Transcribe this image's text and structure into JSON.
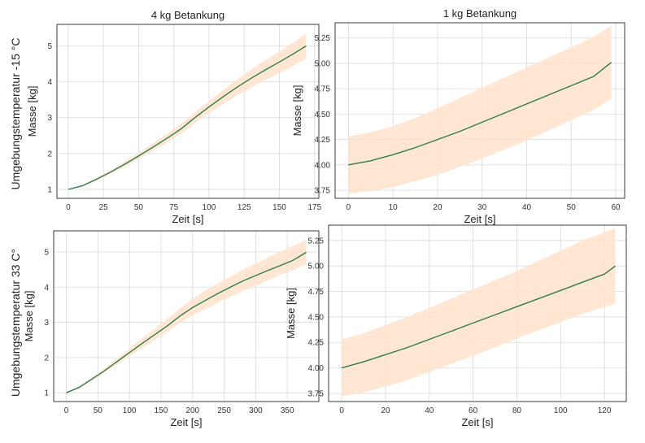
{
  "row_labels": [
    "Umgebungstemperatur -15 °C",
    "Umgebungstemperatur 33 C°"
  ],
  "colors": {
    "line": "#2e7d4a",
    "band": "#ffe3cc",
    "grid": "#d9d9d9",
    "frame": "#3a3a3a"
  },
  "chart_data": [
    {
      "type": "line",
      "title": "4 kg Betankung",
      "xlabel": "Zeit [s]",
      "ylabel": "Masse [kg]",
      "xlim": [
        -8,
        178
      ],
      "ylim": [
        0.75,
        5.6
      ],
      "xticks": [
        0,
        25,
        50,
        75,
        100,
        125,
        150,
        175
      ],
      "yticks": [
        1,
        2,
        3,
        4,
        5
      ],
      "grid": true,
      "series": [
        {
          "x": [
            0,
            10,
            20,
            30,
            40,
            50,
            60,
            70,
            80,
            90,
            100,
            110,
            120,
            130,
            140,
            150,
            160,
            169
          ],
          "y": [
            1.0,
            1.1,
            1.28,
            1.48,
            1.7,
            1.93,
            2.17,
            2.42,
            2.68,
            3.0,
            3.3,
            3.58,
            3.85,
            4.1,
            4.33,
            4.55,
            4.78,
            5.0
          ],
          "lower": [
            1.0,
            1.08,
            1.24,
            1.43,
            1.63,
            1.85,
            2.07,
            2.3,
            2.55,
            2.85,
            3.13,
            3.38,
            3.62,
            3.84,
            4.05,
            4.25,
            4.45,
            4.65
          ],
          "upper": [
            1.0,
            1.12,
            1.32,
            1.53,
            1.77,
            2.02,
            2.28,
            2.55,
            2.83,
            3.15,
            3.47,
            3.77,
            4.07,
            4.35,
            4.6,
            4.85,
            5.1,
            5.35
          ]
        }
      ]
    },
    {
      "type": "line",
      "title": "1 kg Betankung",
      "xlabel": "Zeit [s]",
      "ylabel": "Masse [kg]",
      "xlim": [
        -3,
        62
      ],
      "ylim": [
        3.67,
        5.4
      ],
      "xticks": [
        0,
        10,
        20,
        30,
        40,
        50,
        60
      ],
      "yticks": [
        3.75,
        4.0,
        4.25,
        4.5,
        4.75,
        5.0,
        5.25
      ],
      "grid": true,
      "series": [
        {
          "x": [
            0,
            5,
            10,
            15,
            20,
            25,
            30,
            35,
            40,
            45,
            50,
            55,
            59
          ],
          "y": [
            4.0,
            4.04,
            4.1,
            4.17,
            4.25,
            4.33,
            4.42,
            4.51,
            4.6,
            4.69,
            4.78,
            4.87,
            5.01
          ],
          "lower": [
            3.72,
            3.74,
            3.78,
            3.84,
            3.9,
            3.98,
            4.06,
            4.15,
            4.24,
            4.34,
            4.44,
            4.54,
            4.65
          ],
          "upper": [
            4.28,
            4.32,
            4.38,
            4.46,
            4.56,
            4.66,
            4.76,
            4.86,
            4.96,
            5.06,
            5.16,
            5.26,
            5.37
          ]
        }
      ]
    },
    {
      "type": "line",
      "title": "",
      "xlabel": "Zeit [s]",
      "ylabel": "Masse [kg]",
      "xlim": [
        -20,
        400
      ],
      "ylim": [
        0.75,
        5.6
      ],
      "xticks": [
        0,
        50,
        100,
        150,
        200,
        250,
        300,
        350
      ],
      "yticks": [
        1,
        2,
        3,
        4,
        5
      ],
      "grid": true,
      "series": [
        {
          "x": [
            0,
            20,
            40,
            60,
            80,
            100,
            120,
            140,
            160,
            180,
            200,
            220,
            240,
            260,
            280,
            300,
            320,
            340,
            360,
            380
          ],
          "y": [
            1.0,
            1.15,
            1.38,
            1.62,
            1.88,
            2.14,
            2.4,
            2.65,
            2.9,
            3.18,
            3.42,
            3.62,
            3.82,
            4.0,
            4.18,
            4.33,
            4.48,
            4.62,
            4.77,
            4.99
          ],
          "lower": [
            1.0,
            1.13,
            1.34,
            1.56,
            1.8,
            2.03,
            2.27,
            2.5,
            2.73,
            2.98,
            3.2,
            3.38,
            3.56,
            3.73,
            3.89,
            4.04,
            4.2,
            4.35,
            4.5,
            4.65
          ],
          "upper": [
            1.0,
            1.17,
            1.42,
            1.68,
            1.97,
            2.26,
            2.55,
            2.82,
            3.1,
            3.4,
            3.67,
            3.9,
            4.11,
            4.3,
            4.5,
            4.67,
            4.85,
            5.02,
            5.18,
            5.35
          ]
        }
      ]
    },
    {
      "type": "line",
      "title": "",
      "xlabel": "Zeit [s]",
      "ylabel": "Masse [kg]",
      "xlim": [
        -6,
        130
      ],
      "ylim": [
        3.67,
        5.4
      ],
      "xticks": [
        0,
        20,
        40,
        60,
        80,
        100,
        120
      ],
      "yticks": [
        3.75,
        4.0,
        4.25,
        4.5,
        4.75,
        5.0,
        5.25
      ],
      "grid": true,
      "series": [
        {
          "x": [
            0,
            10,
            20,
            30,
            40,
            50,
            60,
            70,
            80,
            90,
            100,
            110,
            120,
            125
          ],
          "y": [
            4.0,
            4.06,
            4.13,
            4.2,
            4.28,
            4.36,
            4.44,
            4.52,
            4.6,
            4.68,
            4.76,
            4.84,
            4.92,
            5.0
          ],
          "lower": [
            3.72,
            3.76,
            3.82,
            3.88,
            3.96,
            4.04,
            4.12,
            4.2,
            4.29,
            4.37,
            4.45,
            4.53,
            4.6,
            4.63
          ],
          "upper": [
            4.28,
            4.34,
            4.42,
            4.5,
            4.59,
            4.68,
            4.77,
            4.86,
            4.95,
            5.05,
            5.15,
            5.25,
            5.33,
            5.37
          ]
        }
      ]
    }
  ]
}
